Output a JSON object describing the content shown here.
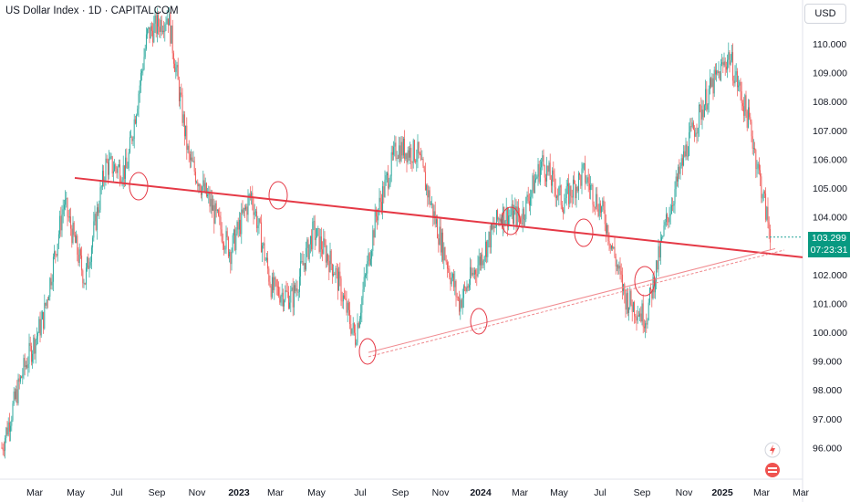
{
  "header": {
    "title": "US Dollar Index · 1D · CAPITALCOM",
    "currency": "USD"
  },
  "price_tag": {
    "price": "103.299",
    "countdown": "07:23:31",
    "color": "#089981"
  },
  "colors": {
    "up": "#26a69a",
    "down": "#ef5350",
    "trendline": "#e53946",
    "support": "#f08a8f"
  },
  "icons": {
    "top": "lightning-icon",
    "bottom": "flag-icon"
  },
  "chart_data": {
    "type": "candlestick",
    "title": "US Dollar Index",
    "interval": "1D",
    "ylim": [
      95.0,
      111.5
    ],
    "y_ticks": [
      "96.000",
      "97.000",
      "98.000",
      "99.000",
      "100.000",
      "101.000",
      "102.000",
      "103.000",
      "104.000",
      "105.000",
      "106.000",
      "107.000",
      "108.000",
      "109.000",
      "110.000"
    ],
    "x_ticks": [
      "Mar",
      "May",
      "Jul",
      "Sep",
      "Nov",
      "2023",
      "Mar",
      "May",
      "Jul",
      "Sep",
      "Nov",
      "2024",
      "Mar",
      "May",
      "Jul",
      "Sep",
      "Nov",
      "2025",
      "Mar",
      "Mar"
    ],
    "close_path": [
      [
        "Feb",
        96.0
      ],
      [
        "Mar",
        98.6
      ],
      [
        "Apr",
        100.5
      ],
      [
        "May",
        104.5
      ],
      [
        "Jun",
        101.8
      ],
      [
        "Jul",
        105.8
      ],
      [
        "Aug",
        105.6
      ],
      [
        "Sep",
        110.3
      ],
      [
        "Oct",
        111.0
      ],
      [
        "Nov",
        106.0
      ],
      [
        "Dec",
        104.5
      ],
      [
        "2023",
        102.8
      ],
      [
        "Feb",
        104.8
      ],
      [
        "Mar",
        101.5
      ],
      [
        "Apr",
        101.2
      ],
      [
        "May",
        103.5
      ],
      [
        "Jun",
        102.2
      ],
      [
        "Jul",
        99.8
      ],
      [
        "Aug",
        104.0
      ],
      [
        "Sep",
        106.4
      ],
      [
        "Oct",
        106.2
      ],
      [
        "Nov",
        103.5
      ],
      [
        "Dec",
        101.0
      ],
      [
        "2024",
        102.5
      ],
      [
        "Feb",
        104.1
      ],
      [
        "Mar",
        104.0
      ],
      [
        "Apr",
        105.9
      ],
      [
        "May",
        104.5
      ],
      [
        "Jun",
        105.5
      ],
      [
        "Jul",
        104.0
      ],
      [
        "Aug",
        101.2
      ],
      [
        "Sep",
        100.5
      ],
      [
        "Oct",
        103.9
      ],
      [
        "Nov",
        106.5
      ],
      [
        "Dec",
        108.3
      ],
      [
        "2025",
        109.6
      ],
      [
        "Feb",
        107.2
      ],
      [
        "Mar",
        103.3
      ]
    ],
    "lines": [
      {
        "name": "resistance",
        "from": [
          "May 2022",
          105.35
        ],
        "to": [
          "Mar 2025",
          102.6
        ]
      },
      {
        "name": "support",
        "from": [
          "Jul 2023",
          99.3
        ],
        "to": [
          "Mar 2025",
          102.9
        ]
      }
    ],
    "last_price": 103.299
  }
}
